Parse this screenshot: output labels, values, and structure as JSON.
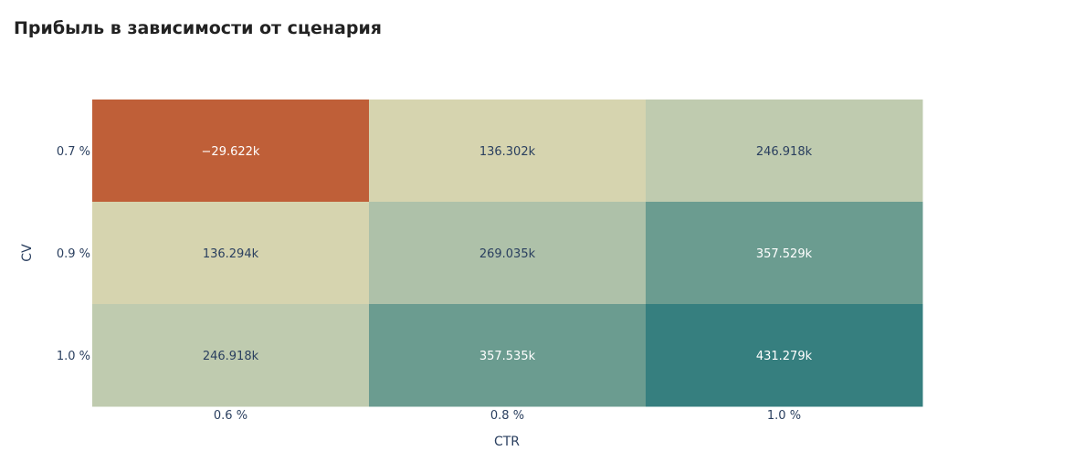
{
  "chart_data": {
    "type": "heatmap",
    "title": "Прибыль в зависимости от сценария",
    "xlabel": "CTR",
    "ylabel": "CV",
    "x": [
      "0.6 %",
      "0.8 %",
      "1.0 %"
    ],
    "y": [
      "0.7 %",
      "0.9 %",
      "1.0 %"
    ],
    "z": [
      [
        -29622,
        136302,
        246918
      ],
      [
        136294,
        269035,
        357529
      ],
      [
        246918,
        357535,
        431279
      ]
    ],
    "text": [
      [
        "−29.622k",
        "136.302k",
        "246.918k"
      ],
      [
        "136.294k",
        "269.035k",
        "357.529k"
      ],
      [
        "246.918k",
        "357.535k",
        "431.279k"
      ]
    ],
    "colorscale": [
      "#bf5f38",
      "#e8c598",
      "#d2d8b5",
      "#bfcbaf",
      "#78a394",
      "#367f7f"
    ],
    "text_colors": {
      "light": "#ffffff",
      "dark": "#2a3f5f"
    }
  }
}
